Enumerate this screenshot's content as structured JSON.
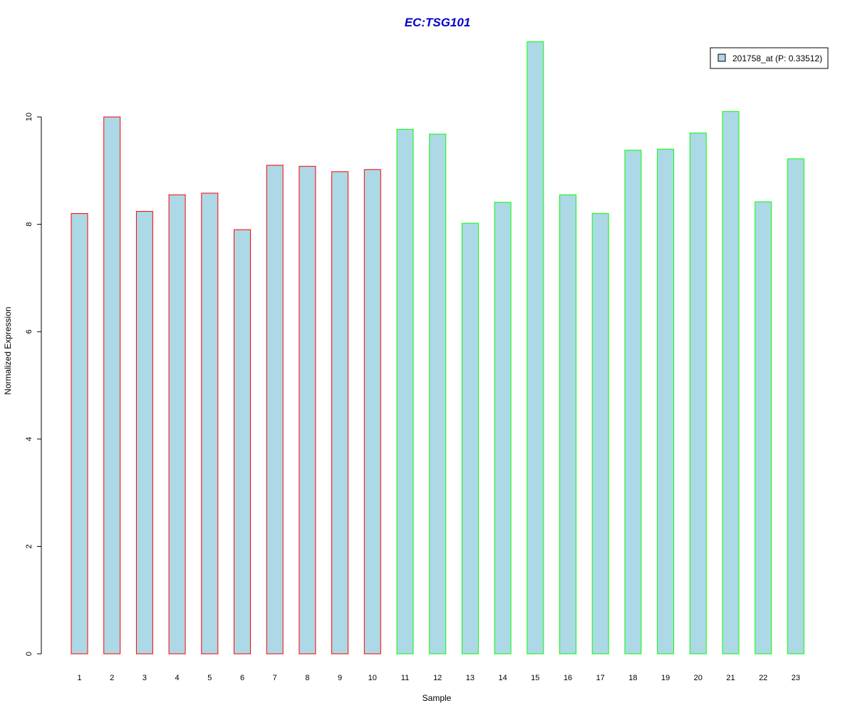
{
  "chart_data": {
    "type": "bar",
    "title": "EC:TSG101",
    "xlabel": "Sample",
    "ylabel": "Normalized Expression",
    "categories": [
      "1",
      "2",
      "3",
      "4",
      "5",
      "6",
      "7",
      "8",
      "9",
      "10",
      "11",
      "12",
      "13",
      "14",
      "15",
      "16",
      "17",
      "18",
      "19",
      "20",
      "21",
      "22",
      "23"
    ],
    "values": [
      8.2,
      10.0,
      8.24,
      8.55,
      8.58,
      7.9,
      9.1,
      9.08,
      8.98,
      9.02,
      9.77,
      9.68,
      8.02,
      8.41,
      11.4,
      8.55,
      8.2,
      9.38,
      9.4,
      9.7,
      10.1,
      8.42,
      9.22
    ],
    "groups": [
      "red",
      "red",
      "red",
      "red",
      "red",
      "red",
      "red",
      "red",
      "red",
      "red",
      "green",
      "green",
      "green",
      "green",
      "green",
      "green",
      "green",
      "green",
      "green",
      "green",
      "green",
      "green",
      "green"
    ],
    "ylim": [
      0,
      11.4
    ],
    "yticks": [
      0,
      2,
      4,
      6,
      8,
      10
    ],
    "grid": false,
    "legend": {
      "position": "top-right",
      "entries": [
        {
          "label": "201758_at (P: 0.33512)",
          "fill": "#ADD8E6"
        }
      ]
    },
    "colors": {
      "bar_fill": "#ADD8E6",
      "border_red": "#FF0000",
      "border_green": "#00FF00",
      "title": "#0000CD"
    }
  }
}
